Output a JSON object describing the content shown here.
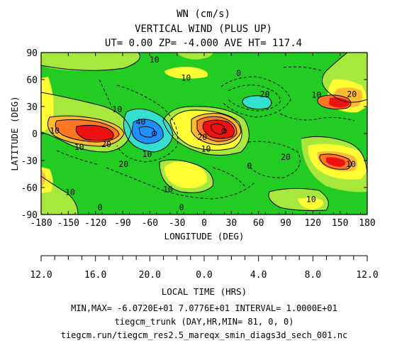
{
  "header": {
    "title_line1": "WN (cm/s)",
    "title_line2": "VERTICAL WIND (PLUS UP)",
    "title_line3": "UT= 0.00 ZP= -4.000 AVE HT= 117.4"
  },
  "footer": {
    "minmax": "MIN,MAX= -6.0720E+01  7.0776E+01 INTERVAL=  1.0000E+01",
    "model": "tiegcm_trunk (DAY,HR,MIN= 81, 0, 0)",
    "file": "tiegcm.run/tiegcm_res2.5_mareqx_smin_diags3d_sech_001.nc"
  },
  "chart_data": {
    "type": "heatmap",
    "title": "WN (cm/s)",
    "subtitle": "VERTICAL WIND (PLUS UP)",
    "info": "UT= 0.00 ZP= -4.000 AVE HT= 117.4",
    "xlabel": "LONGITUDE (DEG)",
    "ylabel": "LATITUDE (DEG)",
    "xlim": [
      -180,
      180
    ],
    "ylim": [
      -90,
      90
    ],
    "xticks": [
      "-180",
      "-150",
      "-120",
      "-90",
      "-60",
      "-30",
      "0",
      "30",
      "60",
      "90",
      "120",
      "150",
      "180"
    ],
    "yticks": [
      "90",
      "60",
      "30",
      "0",
      "-30",
      "-60",
      "-90"
    ],
    "secondary_xlabel": "LOCAL TIME (HRS)",
    "secondary_xticks": [
      "12.0",
      "16.0",
      "20.0",
      "0.0",
      "4.0",
      "8.0",
      "12.0"
    ],
    "min": -60.72,
    "max": 70.776,
    "interval": 10,
    "colors": {
      "le_-30": "#1e90ff",
      "-30_-10": "#33e0d0",
      "-10_0": "#22cc22",
      "0_10": "#a6e83c",
      "10_20": "#ffff33",
      "20_30": "#ffbb33",
      "30_40": "#ff7722",
      "ge_40": "#ee1111"
    },
    "contour_labels": [
      {
        "text": "10",
        "lon": -55,
        "lat": 82
      },
      {
        "text": "10",
        "lon": -20,
        "lat": 62
      },
      {
        "text": "0",
        "lon": 38,
        "lat": 67
      },
      {
        "text": "20",
        "lon": 67,
        "lat": 44
      },
      {
        "text": "10",
        "lon": 124,
        "lat": 43
      },
      {
        "text": "20",
        "lon": 163,
        "lat": 44
      },
      {
        "text": "10",
        "lon": -96,
        "lat": 27
      },
      {
        "text": "10",
        "lon": -165,
        "lat": 3
      },
      {
        "text": "20",
        "lon": -108,
        "lat": -12
      },
      {
        "text": "10",
        "lon": -138,
        "lat": -15
      },
      {
        "text": "40",
        "lon": -70,
        "lat": 13
      },
      {
        "text": "10",
        "lon": -63,
        "lat": -23
      },
      {
        "text": "20",
        "lon": -89,
        "lat": -34
      },
      {
        "text": "20",
        "lon": -2,
        "lat": -4
      },
      {
        "text": "10",
        "lon": 2,
        "lat": -17
      },
      {
        "text": "0",
        "lon": 50,
        "lat": -36
      },
      {
        "text": "20",
        "lon": 90,
        "lat": -26
      },
      {
        "text": "10",
        "lon": 162,
        "lat": -34
      },
      {
        "text": "10",
        "lon": -148,
        "lat": -65
      },
      {
        "text": "10",
        "lon": -40,
        "lat": -62
      },
      {
        "text": "0",
        "lon": -115,
        "lat": -82
      },
      {
        "text": "0",
        "lon": -25,
        "lat": -82
      },
      {
        "text": "10",
        "lon": 118,
        "lat": -73
      }
    ],
    "extrema": [
      {
        "kind": "min",
        "lon": -55,
        "lat": 0,
        "value": -60.72
      },
      {
        "kind": "max",
        "lon": 22,
        "lat": 3,
        "value": 70.776
      }
    ]
  }
}
